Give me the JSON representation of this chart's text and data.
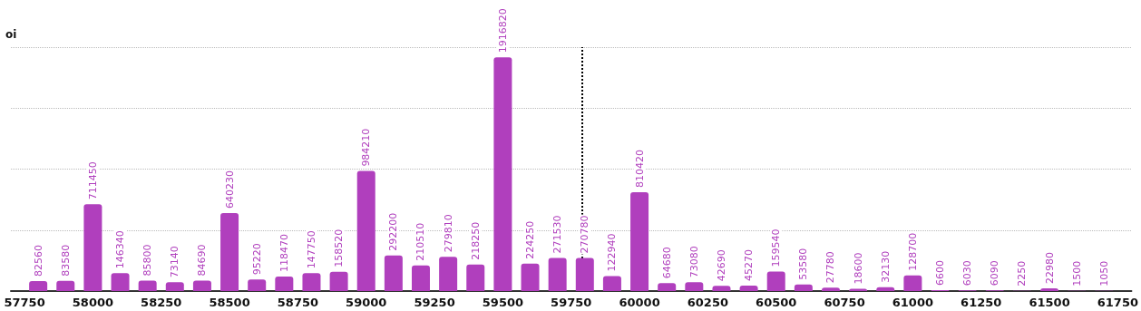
{
  "chart_data": {
    "type": "bar",
    "ylabel": "oi",
    "x": [
      57800,
      57900,
      58000,
      58100,
      58200,
      58300,
      58400,
      58500,
      58600,
      58700,
      58800,
      58900,
      59000,
      59100,
      59200,
      59300,
      59400,
      59500,
      59600,
      59700,
      59800,
      59900,
      60000,
      60100,
      60200,
      60300,
      60400,
      60500,
      60600,
      60700,
      60800,
      60900,
      61000,
      61100,
      61200,
      61300,
      61400,
      61500,
      61600,
      61700
    ],
    "values": [
      82560,
      83580,
      711450,
      146340,
      85800,
      73140,
      84690,
      640230,
      95220,
      118470,
      147750,
      158520,
      984210,
      292200,
      210510,
      279810,
      218250,
      1916820,
      224250,
      271530,
      270780,
      122940,
      810420,
      64680,
      73080,
      42690,
      45270,
      159540,
      53580,
      27780,
      18600,
      32130,
      128700,
      6600,
      6030,
      6090,
      2250,
      22980,
      1500,
      1050
    ],
    "color": "#b03fbd",
    "data_labels": true,
    "xlim": [
      57700,
      61800
    ],
    "xticks": [
      57750,
      58000,
      58250,
      58500,
      58750,
      59000,
      59250,
      59500,
      59750,
      60000,
      60250,
      60500,
      60750,
      61000,
      61250,
      61500,
      61750
    ],
    "ylim": [
      0,
      2000000
    ],
    "yticks": [
      {
        "value": 0,
        "label": null
      },
      {
        "value": 500000,
        "label": null
      },
      {
        "value": 1000000,
        "label": null
      },
      {
        "value": 1500000,
        "label": null
      },
      {
        "value": 2000000,
        "label": null
      }
    ],
    "tick_labels": "x",
    "grid": "y",
    "ref_lines": [
      {
        "axis": "x",
        "value": 59790,
        "label": null,
        "color": "#000000",
        "line_style": "dotted"
      }
    ]
  }
}
